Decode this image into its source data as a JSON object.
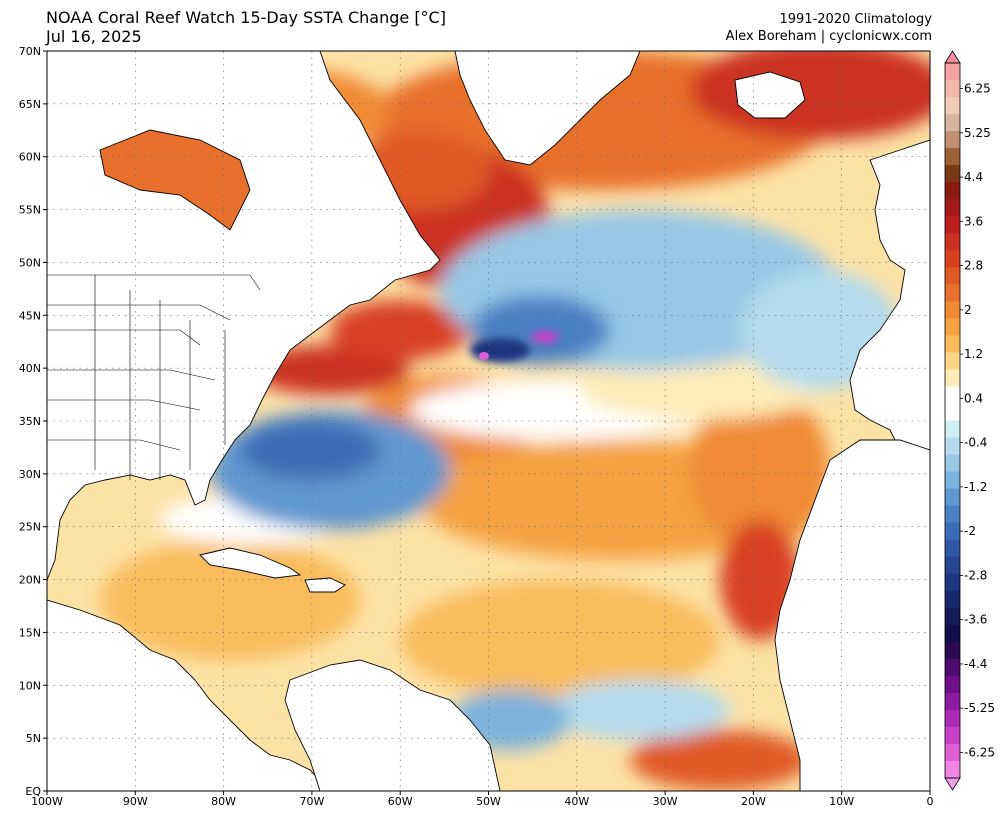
{
  "header": {
    "title": "NOAA Coral Reef Watch 15-Day SSTA Change [°C]",
    "date": "Jul 16, 2025",
    "climatology": "1991-2020 Climatology",
    "credit": "Alex Boreham | cyclonicwx.com"
  },
  "map": {
    "lon_range": [
      -100,
      0
    ],
    "lat_range": [
      0,
      70
    ],
    "lon_ticks": [
      {
        "value": -100,
        "label": "100W"
      },
      {
        "value": -90,
        "label": "90W"
      },
      {
        "value": -80,
        "label": "80W"
      },
      {
        "value": -70,
        "label": "70W"
      },
      {
        "value": -60,
        "label": "60W"
      },
      {
        "value": -50,
        "label": "50W"
      },
      {
        "value": -40,
        "label": "40W"
      },
      {
        "value": -30,
        "label": "30W"
      },
      {
        "value": -20,
        "label": "20W"
      },
      {
        "value": -10,
        "label": "10W"
      },
      {
        "value": 0,
        "label": "0"
      }
    ],
    "lat_ticks": [
      {
        "value": 70,
        "label": "70N"
      },
      {
        "value": 65,
        "label": "65N"
      },
      {
        "value": 60,
        "label": "60N"
      },
      {
        "value": 55,
        "label": "55N"
      },
      {
        "value": 50,
        "label": "50N"
      },
      {
        "value": 45,
        "label": "45N"
      },
      {
        "value": 40,
        "label": "40N"
      },
      {
        "value": 35,
        "label": "35N"
      },
      {
        "value": 30,
        "label": "30N"
      },
      {
        "value": 25,
        "label": "25N"
      },
      {
        "value": 20,
        "label": "20N"
      },
      {
        "value": 15,
        "label": "15N"
      },
      {
        "value": 10,
        "label": "10N"
      },
      {
        "value": 5,
        "label": "5N"
      },
      {
        "value": 0,
        "label": "EQ"
      }
    ],
    "grid": "dotted",
    "land_color": "#ffffff"
  },
  "colorbar": {
    "labels": [
      "6.25",
      "5.25",
      "4.4",
      "3.6",
      "2.8",
      "2",
      "1.2",
      "0.4",
      "-0.4",
      "-1.2",
      "-2",
      "-2.8",
      "-3.6",
      "-4.4",
      "-5.25",
      "-6.25"
    ],
    "colors": [
      "#f4a4a0",
      "#f0b8a8",
      "#f4cbb8",
      "#d8b4a0",
      "#c09070",
      "#9c6038",
      "#7a3818",
      "#8a1a10",
      "#a41a18",
      "#bc2020",
      "#cc3020",
      "#d84020",
      "#e05a26",
      "#e8702c",
      "#f08a36",
      "#f4a242",
      "#f8bc5c",
      "#fcd488",
      "#feecb8",
      "#ffffff",
      "#ffffff",
      "#d0ecf4",
      "#b4dcee",
      "#98c8e6",
      "#7cb2dc",
      "#6098d0",
      "#4a80c4",
      "#3c6cb6",
      "#3058a4",
      "#264692",
      "#1e3680",
      "#18286c",
      "#141c58",
      "#140e48",
      "#2a0a50",
      "#4e0c6e",
      "#6e1088",
      "#8c1ca0",
      "#ac2cb6",
      "#c840c6",
      "#de60d4",
      "#ee86e2"
    ]
  }
}
